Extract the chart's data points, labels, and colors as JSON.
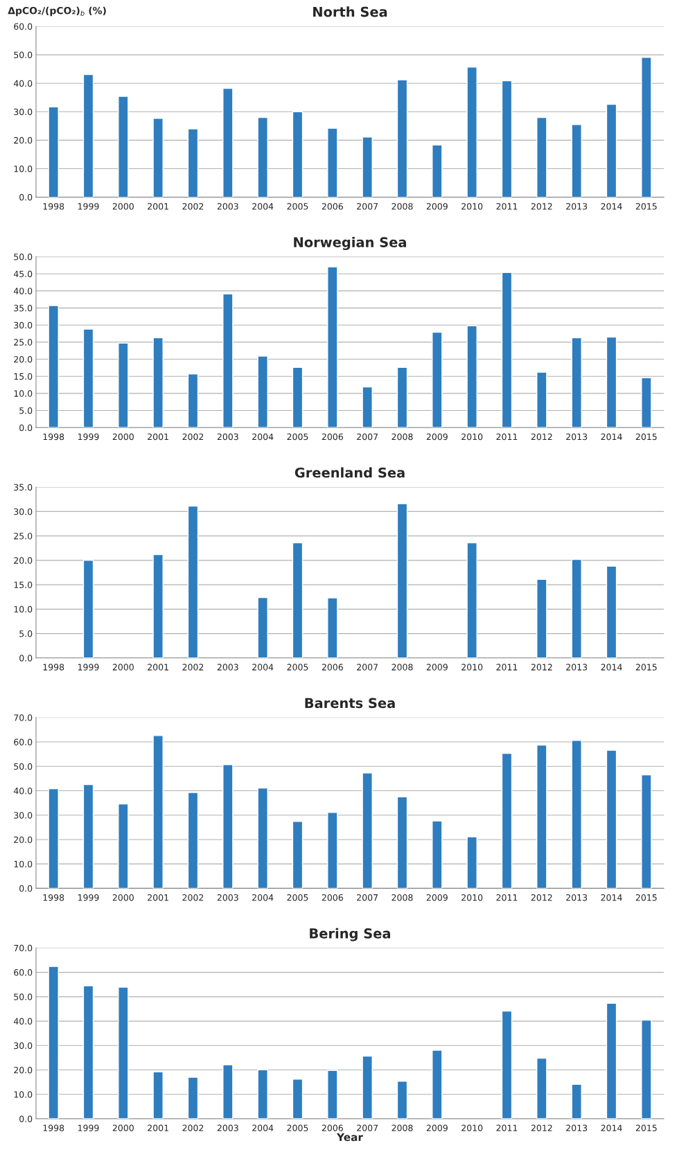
{
  "chart_data": [
    {
      "type": "bar",
      "title": "North Sea",
      "ylabel": "ΔpCO₂/(pCO₂)$_{b}$ (%)",
      "categories": [
        "1998",
        "1999",
        "2000",
        "2001",
        "2002",
        "2003",
        "2004",
        "2005",
        "2006",
        "2007",
        "2008",
        "2009",
        "2010",
        "2011",
        "2012",
        "2013",
        "2014",
        "2015"
      ],
      "color": "#2e7dbf",
      "values": [
        31.7,
        43.1,
        35.4,
        27.7,
        24.0,
        38.2,
        28.0,
        30.0,
        24.2,
        21.1,
        41.2,
        18.3,
        45.7,
        40.9,
        28.0,
        25.5,
        32.6,
        49.1
      ],
      "ylim": [
        0,
        60
      ],
      "yticks": [
        {
          "value": 0,
          "label": "0.0"
        },
        {
          "value": 10,
          "label": "10.0"
        },
        {
          "value": 20,
          "label": "20.0"
        },
        {
          "value": 30,
          "label": "30.0"
        },
        {
          "value": 40,
          "label": "40.0"
        },
        {
          "value": 50,
          "label": "50.0"
        },
        {
          "value": 60,
          "label": "60.0"
        }
      ],
      "grid": "y"
    },
    {
      "type": "bar",
      "title": "Norwegian Sea",
      "categories": [
        "1998",
        "1999",
        "2000",
        "2001",
        "2002",
        "2003",
        "2004",
        "2005",
        "2006",
        "2007",
        "2008",
        "2009",
        "2010",
        "2011",
        "2012",
        "2013",
        "2014",
        "2015"
      ],
      "color": "#2e7dbf",
      "values": [
        35.7,
        28.8,
        24.7,
        26.3,
        15.7,
        39.1,
        20.9,
        17.6,
        47.0,
        11.9,
        17.6,
        27.9,
        29.8,
        45.4,
        16.2,
        26.3,
        26.5,
        14.6
      ],
      "ylim": [
        0,
        50
      ],
      "yticks": [
        {
          "value": 0,
          "label": "0.0"
        },
        {
          "value": 5,
          "label": "5.0"
        },
        {
          "value": 10,
          "label": "10.0"
        },
        {
          "value": 15,
          "label": "15.0"
        },
        {
          "value": 20,
          "label": "20.0"
        },
        {
          "value": 25,
          "label": "25.0"
        },
        {
          "value": 30,
          "label": "30.0"
        },
        {
          "value": 35,
          "label": "35.0"
        },
        {
          "value": 40,
          "label": "40.0"
        },
        {
          "value": 45,
          "label": "45.0"
        },
        {
          "value": 50,
          "label": "50.0"
        }
      ],
      "grid": "y"
    },
    {
      "type": "bar",
      "title": "Greenland Sea",
      "categories": [
        "1998",
        "1999",
        "2000",
        "2001",
        "2002",
        "2003",
        "2004",
        "2005",
        "2006",
        "2007",
        "2008",
        "2009",
        "2010",
        "2011",
        "2012",
        "2013",
        "2014",
        "2015"
      ],
      "color": "#2e7dbf",
      "values": [
        null,
        20.0,
        null,
        21.2,
        31.1,
        null,
        12.4,
        23.6,
        12.3,
        null,
        31.6,
        null,
        23.6,
        null,
        16.1,
        20.2,
        18.8,
        null
      ],
      "ylim": [
        0,
        35
      ],
      "yticks": [
        {
          "value": 0,
          "label": "0.0"
        },
        {
          "value": 5,
          "label": "5.0"
        },
        {
          "value": 10,
          "label": "10.0"
        },
        {
          "value": 15,
          "label": "15.0"
        },
        {
          "value": 20,
          "label": "20.0"
        },
        {
          "value": 25,
          "label": "25.0"
        },
        {
          "value": 30,
          "label": "30.0"
        },
        {
          "value": 35,
          "label": "35.0"
        }
      ],
      "grid": "y"
    },
    {
      "type": "bar",
      "title": "Barents Sea",
      "categories": [
        "1998",
        "1999",
        "2000",
        "2001",
        "2002",
        "2003",
        "2004",
        "2005",
        "2006",
        "2007",
        "2008",
        "2009",
        "2010",
        "2011",
        "2012",
        "2013",
        "2014",
        "2015"
      ],
      "color": "#2e7dbf",
      "values": [
        40.8,
        42.5,
        34.6,
        62.6,
        39.3,
        50.7,
        41.1,
        27.4,
        31.1,
        47.3,
        37.5,
        27.6,
        21.1,
        55.3,
        58.7,
        60.6,
        56.6,
        46.5
      ],
      "ylim": [
        0,
        70
      ],
      "yticks": [
        {
          "value": 0,
          "label": "0.0"
        },
        {
          "value": 10,
          "label": "10.0"
        },
        {
          "value": 20,
          "label": "20.0"
        },
        {
          "value": 30,
          "label": "30.0"
        },
        {
          "value": 40,
          "label": "40.0"
        },
        {
          "value": 50,
          "label": "50.0"
        },
        {
          "value": 60,
          "label": "60.0"
        },
        {
          "value": 70,
          "label": "70.0"
        }
      ],
      "grid": "y"
    },
    {
      "type": "bar",
      "title": "Bering Sea",
      "xlabel": "Year",
      "categories": [
        "1998",
        "1999",
        "2000",
        "2001",
        "2002",
        "2003",
        "2004",
        "2005",
        "2006",
        "2007",
        "2008",
        "2009",
        "2010",
        "2011",
        "2012",
        "2013",
        "2014",
        "2015"
      ],
      "color": "#2e7dbf",
      "values": [
        62.4,
        54.5,
        53.9,
        19.2,
        17.0,
        22.1,
        20.1,
        16.2,
        19.8,
        25.7,
        15.4,
        28.1,
        null,
        44.1,
        24.8,
        14.1,
        47.3,
        40.4
      ],
      "ylim": [
        0,
        70
      ],
      "yticks": [
        {
          "value": 0,
          "label": "0.0"
        },
        {
          "value": 10,
          "label": "10.0"
        },
        {
          "value": 20,
          "label": "20.0"
        },
        {
          "value": 30,
          "label": "30.0"
        },
        {
          "value": 40,
          "label": "40.0"
        },
        {
          "value": 50,
          "label": "50.0"
        },
        {
          "value": 60,
          "label": "60.0"
        },
        {
          "value": 70,
          "label": "70.0"
        }
      ],
      "grid": "y"
    }
  ]
}
